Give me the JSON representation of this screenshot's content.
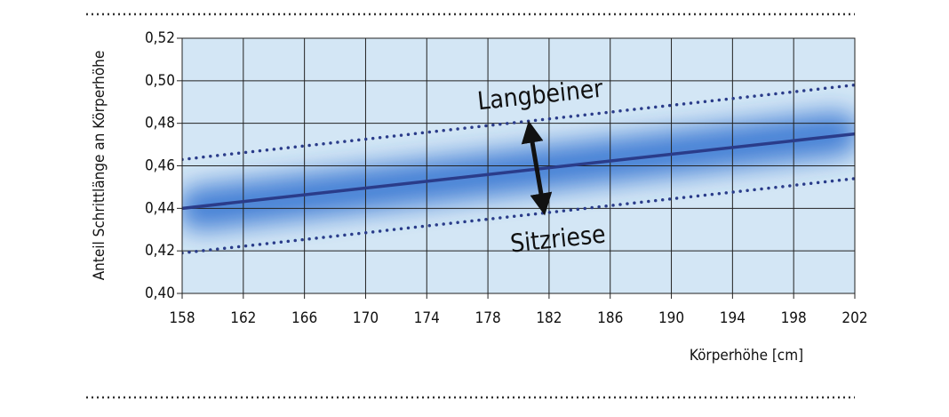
{
  "chart_data": {
    "type": "line",
    "y_label": "Anteil Schrittlänge an Körperhöhe",
    "x_label": "Körperhöhe [cm]",
    "annotations": [
      "Langbeiner",
      "Sitzriese"
    ],
    "x": [
      158,
      202
    ],
    "series": [
      {
        "color": "#2a3c8a",
        "line_style": "dotted",
        "values": [
          0.463,
          0.498
        ]
      },
      {
        "color": "#2a3c8a",
        "line_style": "solid",
        "values": [
          0.44,
          0.475
        ]
      },
      {
        "color": "#2a3c8a",
        "line_style": "dotted",
        "values": [
          0.419,
          0.454
        ]
      }
    ],
    "xlim": [
      158,
      202
    ],
    "xticks": [
      158,
      162,
      166,
      170,
      174,
      178,
      182,
      186,
      190,
      194,
      198,
      202
    ],
    "ylim": [
      0.4,
      0.52
    ],
    "yticks": [
      {
        "value": 0.4,
        "label": "0,40"
      },
      {
        "value": 0.42,
        "label": "0,42"
      },
      {
        "value": 0.44,
        "label": "0,44"
      },
      {
        "value": 0.46,
        "label": "0,46"
      },
      {
        "value": 0.48,
        "label": "0,48"
      },
      {
        "value": 0.5,
        "label": "0,50"
      },
      {
        "value": 0.52,
        "label": "0,52"
      }
    ],
    "grid": true,
    "background": "#d3e6f5"
  }
}
